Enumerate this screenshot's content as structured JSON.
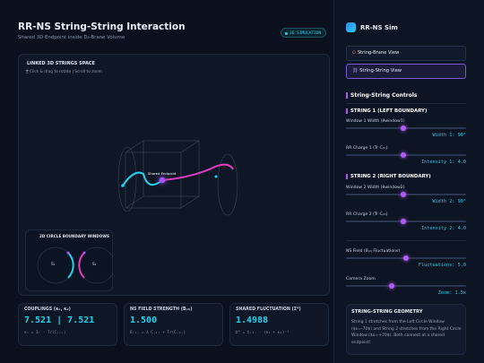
{
  "header": {
    "title": "RR-NS String-String Interaction",
    "subtitle": "Shared 3D Endpoint inside D₃-Brane Volume",
    "badge": "3D SIMULATION"
  },
  "viewport": {
    "title": "LINKED 3D STRINGS SPACE",
    "hint": "Click & drag to rotate | Scroll to zoom",
    "endpoint_label": "Shared Endpoint",
    "inset": {
      "title": "2D CIRCLE BOUNDARY WINDOWS",
      "left_label": "S₁",
      "right_label": "S₂"
    }
  },
  "metrics": [
    {
      "title": "COUPLINGS (κ₁, κ₂)",
      "value": "7.521 | 7.521",
      "formula": "κᵢ = Iᵢ · Tr(C₍ᵢ₎)"
    },
    {
      "title": "NS FIELD STRENGTH (B₍₂₎)",
      "value": "1.500",
      "formula": "B₍₂₎ = λ C₍₁₎ + Tr(C₍₂₎)"
    },
    {
      "title": "SHARED FLUCTUATION (Σ*)",
      "value": "1.4988",
      "formula": "Σ* = Σ₍₁₎ · (κ₁ + κ₂)⁻¹"
    }
  ],
  "sidebar": {
    "brand": "RR-NS Sim",
    "views": [
      "String-Brane View",
      "String-String View"
    ],
    "controls_title": "String-String Controls",
    "groups": [
      {
        "title": "STRING 1 (LEFT BOUNDARY)",
        "controls": [
          {
            "label": "Window 1 Width (θwindow1)",
            "readout": "Width 1: 90°"
          },
          {
            "label": "RR Charge 1 (Tr C₍₁₎)",
            "readout": "Intensity 1: 4.0"
          }
        ]
      },
      {
        "title": "STRING 2 (RIGHT BOUNDARY)",
        "controls": [
          {
            "label": "Window 2 Width (θwindow2)",
            "readout": "Width 2: 90°"
          },
          {
            "label": "RR Charge 2 (Tr C₍₂₎)",
            "readout": "Intensity 2: 4.0"
          }
        ]
      }
    ],
    "extra_controls": [
      {
        "label": "NS Field (B₍₂₎ Fluctuations)",
        "readout": "Fluctuations: 5.0"
      },
      {
        "label": "Camera Zoom",
        "readout": "Zoom: 1.5x"
      }
    ],
    "geometry": {
      "title": "STRING-STRING GEOMETRY",
      "text": "String 1 stretches from the Left Circle Window ($x=-70$) and String 2 stretches from the Right Circle Window ($x=+70$). Both connect at a shared endpoint!"
    }
  }
}
